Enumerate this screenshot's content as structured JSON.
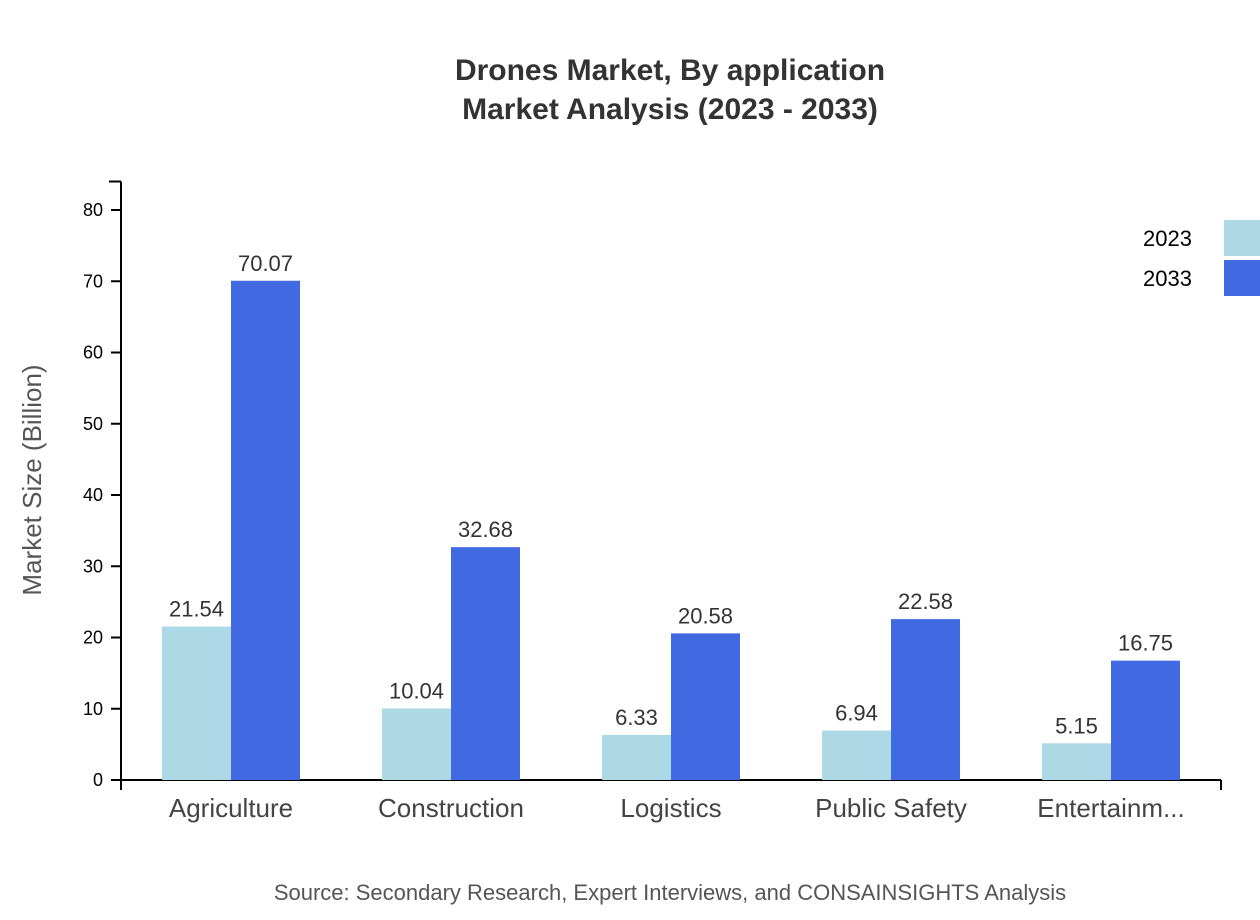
{
  "chart_data": {
    "type": "bar",
    "title": "Drones Market, By application",
    "subtitle": "Market Analysis (2023 - 2033)",
    "xlabel": "",
    "ylabel": "Market Size (Billion)",
    "ylim": [
      0,
      84
    ],
    "yticks": [
      0,
      10,
      20,
      30,
      40,
      50,
      60,
      70,
      80
    ],
    "categories": [
      "Agriculture",
      "Construction",
      "Logistics",
      "Public Safety",
      "Entertainm..."
    ],
    "series": [
      {
        "name": "2023",
        "color": "#ADD8E6",
        "values": [
          21.54,
          10.04,
          6.33,
          6.94,
          5.15
        ]
      },
      {
        "name": "2033",
        "color": "#4169E1",
        "values": [
          70.07,
          32.68,
          20.58,
          22.58,
          16.75
        ]
      }
    ],
    "grid": false,
    "legend_position": "top-right",
    "source": "Source: Secondary Research, Expert Interviews, and CONSAINSIGHTS Analysis"
  }
}
